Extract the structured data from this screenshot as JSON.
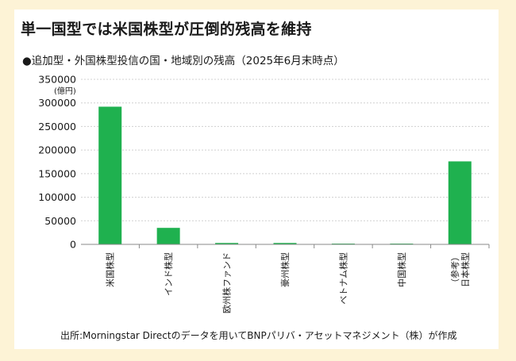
{
  "header": {
    "title": "単一国型では米国株型が圧倒的残高を維持",
    "subtitle": "●追加型・外国株型投信の国・地域別の残高（2025年6月末時点）"
  },
  "footer": {
    "source": "出所:Morningstar Directのデータを用いてBNPパリバ・アセットマネジメント（株）が作成"
  },
  "colors": {
    "bar": "#1fb14f",
    "grid": "#d0d0d0",
    "axis": "#8a8a8a",
    "background": "#fdf3d6"
  },
  "chart_data": {
    "type": "bar",
    "title": "追加型・外国株型投信の国・地域別の残高（2025年6月末時点）",
    "ylabel": "(億円)",
    "xlabel": "",
    "ylim": [
      0,
      350000
    ],
    "yticks": [
      "0",
      "50000",
      "100000",
      "150000",
      "200000",
      "250000",
      "300000",
      "350000"
    ],
    "grid": true,
    "categories": [
      [
        "米国株型"
      ],
      [
        "インド株型"
      ],
      [
        "欧州株ファンド"
      ],
      [
        "豪州株型"
      ],
      [
        "ベトナム株型"
      ],
      [
        "中国株型"
      ],
      [
        "（参考）",
        "日本株型"
      ]
    ],
    "values": [
      292000,
      35000,
      3000,
      3000,
      1500,
      1500,
      176000
    ]
  }
}
